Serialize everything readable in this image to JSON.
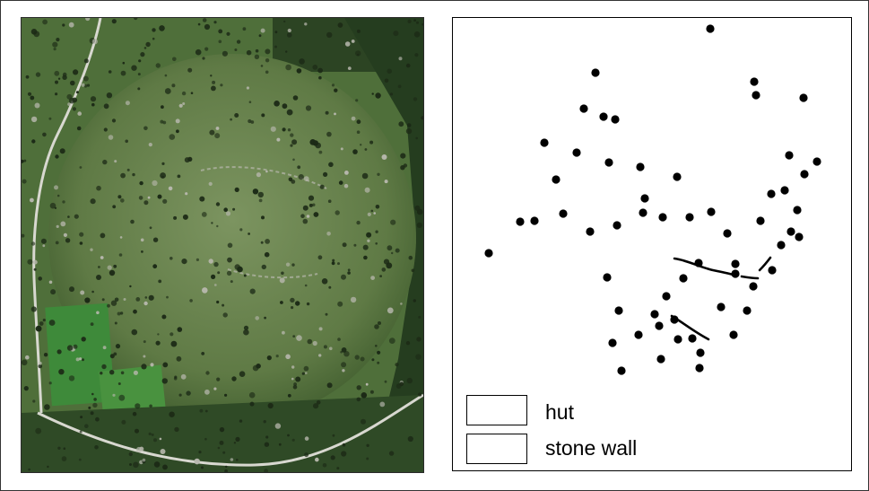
{
  "figure": {
    "photo": {
      "name": "aerial-photo",
      "colors": {
        "grass": "#4f6f3a",
        "grass_light": "#7c9460",
        "field": "#3e8a3a",
        "forest": "#233a1c",
        "road": "#d8d8d0",
        "rock": "#b8b8ae",
        "shadow": "#1c2a16"
      }
    },
    "map": {
      "marker_color": "#000000",
      "legend": {
        "items": [
          {
            "symbol": "dot-icon",
            "label": "hut"
          },
          {
            "symbol": "line-icon",
            "label": "stone wall"
          }
        ]
      }
    }
  }
}
